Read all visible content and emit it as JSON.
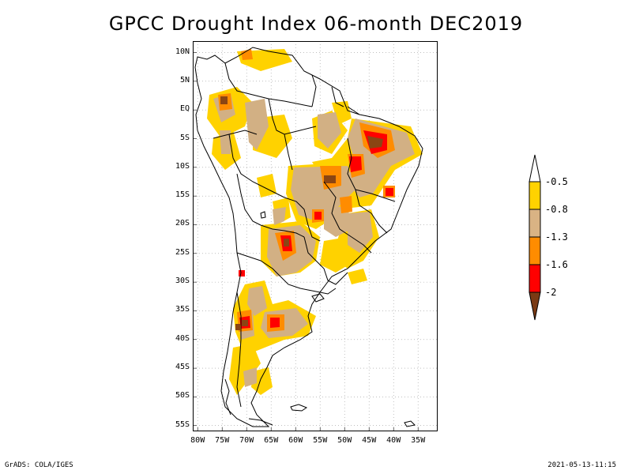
{
  "title": "GPCC Drought Index 06-month DEC2019",
  "lat_labels": [
    "10N",
    "5N",
    "EQ",
    "5S",
    "10S",
    "15S",
    "20S",
    "25S",
    "30S",
    "35S",
    "40S",
    "45S",
    "50S",
    "55S"
  ],
  "lon_labels": [
    "80W",
    "75W",
    "70W",
    "65W",
    "60W",
    "55W",
    "50W",
    "45W",
    "40W",
    "35W"
  ],
  "colorbar": {
    "labels": [
      "-0.5",
      "-0.8",
      "-1.3",
      "-1.6",
      "-2"
    ],
    "colors": [
      "#ffd200",
      "#d9b384",
      "#ff8c00",
      "#ff0000",
      "#7a3a14"
    ]
  },
  "footer": {
    "left": "GrADS: COLA/IGES",
    "right": "2021-05-13-11:15"
  },
  "legend_colors": {
    "yellow": "#ffd200",
    "tan": "#d2b084",
    "orange": "#ff8c00",
    "red": "#ff0000",
    "brown": "#8b4513"
  }
}
